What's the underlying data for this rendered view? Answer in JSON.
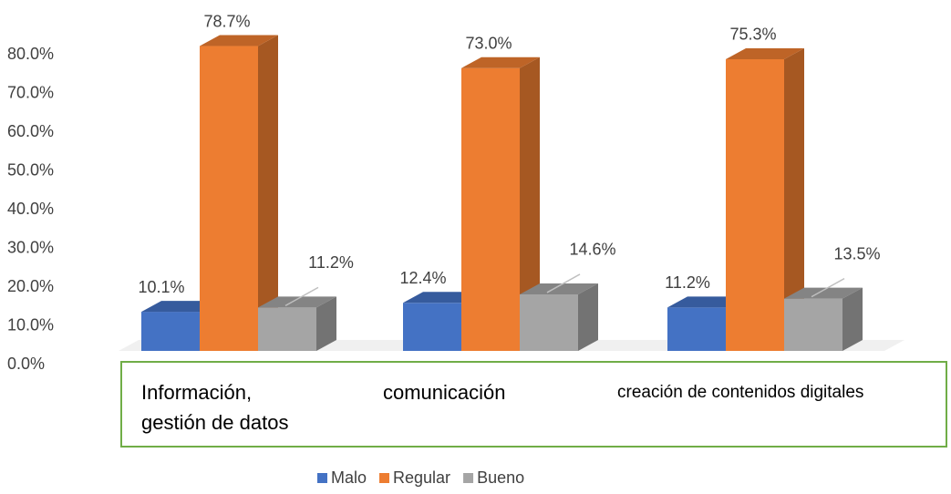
{
  "chart_data": {
    "type": "bar3d",
    "categories": [
      "Información, gestión de datos",
      "comunicación",
      "creación de contenidos digitales"
    ],
    "series": [
      {
        "name": "Malo",
        "color": "#4472c4",
        "values": [
          10.1,
          12.4,
          11.2
        ],
        "value_labels": [
          "10.1%",
          "12.4%",
          "11.2%"
        ]
      },
      {
        "name": "Regular",
        "color": "#ed7d31",
        "values": [
          78.7,
          73.0,
          75.3
        ],
        "value_labels": [
          "78.7%",
          "73.0%",
          "75.3%"
        ]
      },
      {
        "name": "Bueno",
        "color": "#a5a5a5",
        "values": [
          11.2,
          14.6,
          13.5
        ],
        "value_labels": [
          "11.2%",
          "14.6%",
          "13.5%"
        ]
      }
    ],
    "ylim": [
      0,
      80
    ],
    "yticks": [
      {
        "value": 0,
        "label": "0.0%"
      },
      {
        "value": 10,
        "label": "10.0%"
      },
      {
        "value": 20,
        "label": "20.0%"
      },
      {
        "value": 30,
        "label": "30.0%"
      },
      {
        "value": 40,
        "label": "40.0%"
      },
      {
        "value": 50,
        "label": "50.0%"
      },
      {
        "value": 60,
        "label": "60.0%"
      },
      {
        "value": 70,
        "label": "70.0%"
      },
      {
        "value": 80,
        "label": "80.0%"
      }
    ],
    "grid": false,
    "legend": "bottom"
  }
}
